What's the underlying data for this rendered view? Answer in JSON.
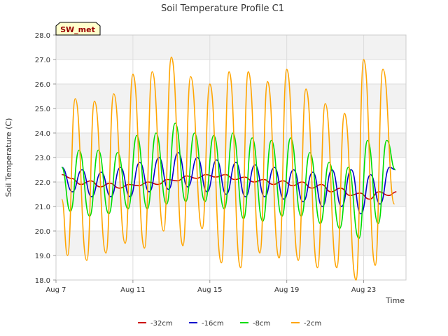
{
  "chart_data": {
    "type": "line",
    "title": "Soil Temperature Profile C1",
    "badge": "SW_met",
    "xlabel": "Time",
    "ylabel": "Soil Temperature (C)",
    "ylim": [
      18.0,
      28.0
    ],
    "yticks": [
      "18.0",
      "19.0",
      "20.0",
      "21.0",
      "22.0",
      "23.0",
      "24.0",
      "25.0",
      "26.0",
      "27.0",
      "28.0"
    ],
    "xlim_days": [
      7.0,
      25.2
    ],
    "xticks": [
      {
        "label": "Aug 7",
        "day": 7
      },
      {
        "label": "Aug 11",
        "day": 11
      },
      {
        "label": "Aug 15",
        "day": 15
      },
      {
        "label": "Aug 19",
        "day": 19
      },
      {
        "label": "Aug 23",
        "day": 23
      }
    ],
    "grid": true,
    "legend_placement": "bottom",
    "series": [
      {
        "name": "-32cm",
        "color": "#cc0000",
        "x": [
          7.3,
          7.8,
          8.3,
          8.8,
          9.3,
          9.8,
          10.3,
          10.8,
          11.3,
          11.8,
          12.3,
          12.8,
          13.3,
          13.8,
          14.3,
          14.8,
          15.3,
          15.8,
          16.3,
          16.8,
          17.3,
          17.8,
          18.3,
          18.8,
          19.3,
          19.8,
          20.3,
          20.8,
          21.3,
          21.8,
          22.3,
          22.8,
          23.3,
          23.8,
          24.3,
          24.7
        ],
        "y": [
          22.3,
          22.15,
          21.9,
          22.05,
          21.8,
          21.95,
          21.75,
          21.9,
          21.85,
          22.0,
          21.9,
          22.1,
          22.05,
          22.25,
          22.15,
          22.3,
          22.2,
          22.3,
          22.1,
          22.2,
          22.0,
          22.1,
          21.9,
          22.05,
          21.85,
          22.0,
          21.75,
          21.9,
          21.6,
          21.75,
          21.45,
          21.55,
          21.3,
          21.6,
          21.45,
          21.6
        ]
      },
      {
        "name": "-16cm",
        "color": "#0000cc",
        "x": [
          7.3,
          7.85,
          8.35,
          8.85,
          9.35,
          9.85,
          10.35,
          10.85,
          11.35,
          11.85,
          12.35,
          12.85,
          13.35,
          13.85,
          14.35,
          14.85,
          15.35,
          15.85,
          16.35,
          16.85,
          17.35,
          17.85,
          18.35,
          18.85,
          19.35,
          19.85,
          20.35,
          20.85,
          21.35,
          21.85,
          22.35,
          22.85,
          23.35,
          23.85,
          24.35,
          24.65
        ],
        "y": [
          22.6,
          21.6,
          22.5,
          21.4,
          22.4,
          21.4,
          22.6,
          21.4,
          22.8,
          21.6,
          23.0,
          21.7,
          23.2,
          21.8,
          23.0,
          21.6,
          22.9,
          21.5,
          22.8,
          21.4,
          22.7,
          21.4,
          22.6,
          21.3,
          22.5,
          21.2,
          22.4,
          21.0,
          22.5,
          21.0,
          22.5,
          20.7,
          22.3,
          21.1,
          22.6,
          22.5
        ]
      },
      {
        "name": "-8cm",
        "color": "#00dd00",
        "x": [
          7.3,
          7.75,
          8.2,
          8.75,
          9.2,
          9.75,
          10.2,
          10.75,
          11.2,
          11.75,
          12.2,
          12.75,
          13.2,
          13.75,
          14.2,
          14.75,
          15.2,
          15.75,
          16.2,
          16.75,
          17.2,
          17.75,
          18.2,
          18.75,
          19.2,
          19.75,
          20.2,
          20.75,
          21.2,
          21.75,
          22.2,
          22.75,
          23.2,
          23.75,
          24.2,
          24.65
        ],
        "y": [
          22.6,
          20.8,
          23.3,
          20.6,
          23.3,
          20.7,
          23.2,
          20.9,
          23.9,
          20.9,
          24.0,
          21.1,
          24.4,
          21.2,
          24.0,
          21.2,
          23.9,
          20.9,
          24.0,
          20.5,
          23.8,
          20.4,
          23.7,
          20.6,
          23.8,
          20.6,
          23.2,
          20.3,
          22.8,
          20.1,
          22.6,
          19.7,
          23.7,
          20.3,
          23.7,
          22.5
        ]
      },
      {
        "name": "-2cm",
        "color": "#ffa500",
        "x": [
          7.3,
          7.6,
          8.0,
          8.6,
          9.0,
          9.6,
          10.0,
          10.6,
          11.0,
          11.6,
          12.0,
          12.6,
          13.0,
          13.6,
          14.0,
          14.6,
          15.0,
          15.6,
          16.0,
          16.6,
          17.0,
          17.6,
          18.0,
          18.6,
          19.0,
          19.6,
          20.0,
          20.6,
          21.0,
          21.6,
          22.0,
          22.6,
          23.0,
          23.6,
          24.0,
          24.6
        ],
        "y": [
          21.3,
          19.0,
          25.4,
          18.8,
          25.3,
          19.1,
          25.6,
          19.5,
          26.4,
          19.3,
          26.5,
          20.0,
          27.1,
          19.4,
          26.3,
          20.1,
          26.0,
          18.7,
          26.5,
          18.5,
          26.5,
          19.1,
          26.1,
          18.9,
          26.6,
          18.8,
          25.8,
          18.5,
          25.2,
          18.5,
          24.8,
          18.0,
          27.0,
          18.6,
          26.6,
          21.1
        ]
      }
    ]
  }
}
